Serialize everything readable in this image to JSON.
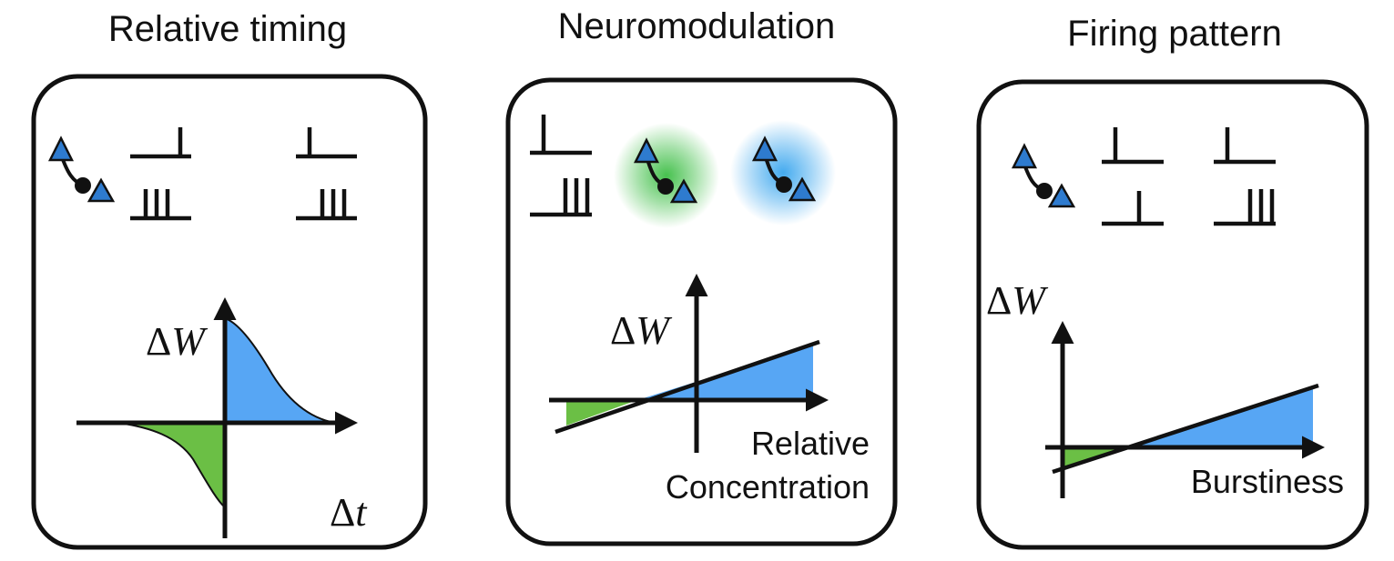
{
  "panels": [
    {
      "title": "Relative timing",
      "y_label": "ΔW",
      "x_label": "Δt"
    },
    {
      "title": "Neuromodulation",
      "y_label": "ΔW",
      "x_label_line1": "Relative",
      "x_label_line2": "Concentration"
    },
    {
      "title": "Firing pattern",
      "y_label": "ΔW",
      "x_label": "Burstiness"
    }
  ],
  "colors": {
    "potentiation": "#57A6F4",
    "depression": "#6BBF45",
    "neuron": "#2E7BCF",
    "neuromodulator_green": "#3DBE45",
    "neuromodulator_blue": "#3AA6EE",
    "stroke": "#111111"
  },
  "icons": [
    "neuron-pair-icon",
    "spike-train-icon",
    "single-spike-icon",
    "neuromodulator-glow-icon"
  ]
}
